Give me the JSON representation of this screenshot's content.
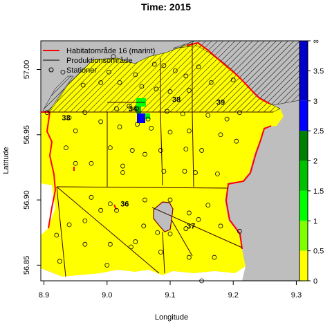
{
  "title": "Time: 2015",
  "x_axis": {
    "label": "Longitude",
    "ticks": [
      {
        "value": 8.9,
        "label": "8.9"
      },
      {
        "value": 9.0,
        "label": "9.0"
      },
      {
        "value": 9.1,
        "label": "9.1"
      },
      {
        "value": 9.2,
        "label": "9.2"
      },
      {
        "value": 9.3,
        "label": "9.3"
      }
    ],
    "range": [
      8.895,
      9.305
    ]
  },
  "y_axis": {
    "label": "Latitude",
    "ticks": [
      {
        "value": 56.85,
        "label": "56.85"
      },
      {
        "value": 56.9,
        "label": "56.90"
      },
      {
        "value": 56.95,
        "label": "56.95"
      },
      {
        "value": 57.0,
        "label": "57.00"
      }
    ],
    "range": [
      56.838,
      57.022
    ]
  },
  "legend": {
    "position": "top-left",
    "items": [
      {
        "label": "Habitatområde 16 (marint)",
        "symbol": "line",
        "color": "#ff0000"
      },
      {
        "label": "Produktionsområde",
        "symbol": "line",
        "color": "#000000"
      },
      {
        "label": "Stationer",
        "symbol": "circle",
        "color": "#000000"
      }
    ]
  },
  "areas": [
    {
      "label": "33",
      "lon": 8.935,
      "lat": 56.961
    },
    {
      "label": "34",
      "lon": 9.041,
      "lat": 56.968
    },
    {
      "label": "38",
      "lon": 9.11,
      "lat": 56.975
    },
    {
      "label": "39",
      "lon": 9.18,
      "lat": 56.973
    },
    {
      "label": "36",
      "lon": 9.028,
      "lat": 56.895
    },
    {
      "label": "37",
      "lon": 9.133,
      "lat": 56.878
    }
  ],
  "colorbar": {
    "ticks": [
      {
        "value": 0,
        "label": "0"
      },
      {
        "value": 0.5,
        "label": "0.5"
      },
      {
        "value": 1,
        "label": "1"
      },
      {
        "value": 1.5,
        "label": "1.5"
      },
      {
        "value": 2,
        "label": "2"
      },
      {
        "value": 2.5,
        "label": "2.5"
      },
      {
        "value": 3,
        "label": "3"
      },
      {
        "value": 3.5,
        "label": "3.5"
      },
      {
        "value": 4,
        "label": "∞"
      }
    ],
    "bands": [
      {
        "from": 0,
        "to": 0.5,
        "color": "#ffff00"
      },
      {
        "from": 0.5,
        "to": 1,
        "color": "#80ff00"
      },
      {
        "from": 1,
        "to": 1.5,
        "color": "#00ff00"
      },
      {
        "from": 1.5,
        "to": 2,
        "color": "#00c000"
      },
      {
        "from": 2,
        "to": 2.5,
        "color": "#008000"
      },
      {
        "from": 2.5,
        "to": 3,
        "color": "#0000ff"
      },
      {
        "from": 3,
        "to": 4,
        "color": "#0000c8"
      }
    ]
  },
  "colors": {
    "land": "#bebebe",
    "sea_low": "#ffff00",
    "habitat_line": "#ff0000",
    "production_line": "#000000"
  },
  "stations": [
    [
      8.93,
      56.998
    ],
    [
      8.962,
      56.988
    ],
    [
      8.99,
      56.99
    ],
    [
      9.003,
      56.998
    ],
    [
      9.01,
      57.01
    ],
    [
      9.02,
      56.99
    ],
    [
      9.045,
      56.996
    ],
    [
      9.075,
      57.004
    ],
    [
      9.09,
      57.003
    ],
    [
      9.108,
      56.999
    ],
    [
      9.125,
      56.995
    ],
    [
      9.145,
      57.002
    ],
    [
      9.165,
      56.99
    ],
    [
      9.2,
      56.992
    ],
    [
      9.078,
      56.985
    ],
    [
      9.055,
      56.987
    ],
    [
      9.1,
      56.983
    ],
    [
      9.13,
      56.984
    ],
    [
      8.905,
      56.967
    ],
    [
      8.94,
      56.963
    ],
    [
      8.965,
      56.967
    ],
    [
      8.99,
      56.96
    ],
    [
      9.015,
      56.97
    ],
    [
      9.035,
      56.972
    ],
    [
      9.047,
      56.97
    ],
    [
      9.065,
      56.962
    ],
    [
      9.095,
      56.968
    ],
    [
      9.12,
      56.966
    ],
    [
      9.16,
      56.965
    ],
    [
      9.19,
      56.962
    ],
    [
      9.21,
      56.967
    ],
    [
      8.95,
      56.953
    ],
    [
      9.02,
      56.956
    ],
    [
      9.048,
      56.958
    ],
    [
      9.07,
      56.955
    ],
    [
      9.1,
      56.952
    ],
    [
      9.13,
      56.953
    ],
    [
      9.18,
      56.95
    ],
    [
      8.935,
      56.94
    ],
    [
      9.005,
      56.94
    ],
    [
      9.04,
      56.938
    ],
    [
      9.085,
      56.938
    ],
    [
      9.125,
      56.939
    ],
    [
      9.15,
      56.938
    ],
    [
      9.205,
      56.945
    ],
    [
      8.95,
      56.928
    ],
    [
      8.975,
      56.928
    ],
    [
      9.025,
      56.926
    ],
    [
      9.06,
      56.935
    ],
    [
      9.09,
      56.922
    ],
    [
      9.123,
      56.922
    ],
    [
      9.14,
      56.921
    ],
    [
      9.175,
      56.92
    ],
    [
      9.025,
      56.921
    ],
    [
      8.975,
      56.902
    ],
    [
      9.005,
      56.897
    ],
    [
      9.06,
      56.9
    ],
    [
      9.1,
      56.9
    ],
    [
      9.13,
      56.89
    ],
    [
      9.145,
      56.885
    ],
    [
      9.16,
      56.896
    ],
    [
      8.94,
      56.881
    ],
    [
      8.965,
      56.884
    ],
    [
      8.99,
      56.892
    ],
    [
      9.015,
      56.892
    ],
    [
      9.058,
      56.88
    ],
    [
      9.08,
      56.875
    ],
    [
      9.1,
      56.874
    ],
    [
      9.125,
      56.878
    ],
    [
      9.18,
      56.88
    ],
    [
      9.21,
      56.876
    ],
    [
      9.045,
      56.868
    ],
    [
      8.92,
      56.873
    ],
    [
      8.965,
      56.866
    ],
    [
      9.005,
      56.866
    ],
    [
      9.038,
      56.864
    ],
    [
      9.085,
      56.86
    ],
    [
      9.13,
      56.856
    ],
    [
      9.17,
      56.856
    ],
    [
      8.925,
      56.853
    ],
    [
      9.0,
      56.85
    ],
    [
      9.15,
      56.838
    ]
  ]
}
